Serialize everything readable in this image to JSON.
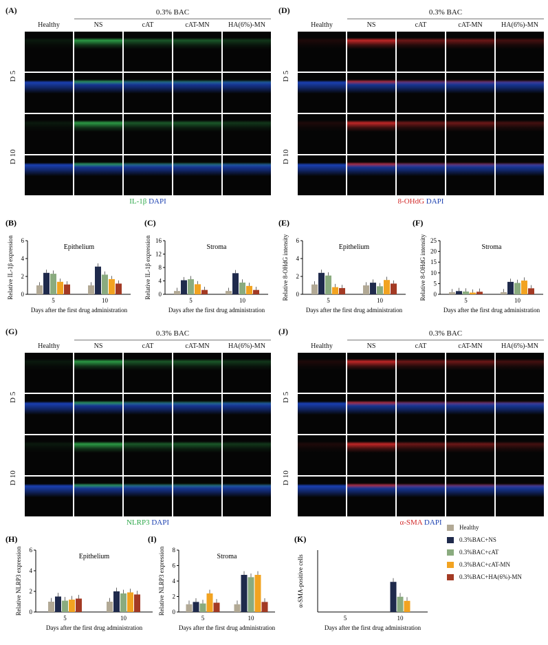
{
  "groups": {
    "bac": "0.3% BAC"
  },
  "columns": [
    "Healthy",
    "NS",
    "cAT",
    "cAT-MN",
    "HA(6%)-MN"
  ],
  "rows": [
    "D 5",
    "D 10"
  ],
  "panels": {
    "A": {
      "label": "(A)",
      "marker": "IL-1β",
      "dapi": "DAPI"
    },
    "D": {
      "label": "(D)",
      "marker": "8-OHdG",
      "dapi": "DAPI"
    },
    "G": {
      "label": "(G)",
      "marker": "NLRP3",
      "dapi": "DAPI"
    },
    "J": {
      "label": "(J)",
      "marker": "α-SMA",
      "dapi": "DAPI"
    }
  },
  "colors": {
    "green": "#2fa84b",
    "red": "#d22a2a",
    "blue": "#1a3fb0"
  },
  "legend": [
    {
      "name": "Healthy",
      "color": "#b2a995"
    },
    {
      "name": "0.3%BAC+NS",
      "color": "#1f2a4c"
    },
    {
      "name": "0.3%BAC+cAT",
      "color": "#8aab7f"
    },
    {
      "name": "0.3%BAC+cAT-MN",
      "color": "#f2a321"
    },
    {
      "name": "0.3%BAC+HA(6%)-MN",
      "color": "#a33a24"
    }
  ],
  "chart_data": [
    {
      "id": "B",
      "label": "(B)",
      "type": "bar",
      "title": "Epithelium",
      "ylabel": "Relative IL-1β expression",
      "xlabel": "Days after the first drug administration",
      "categories": [
        "5",
        "10"
      ],
      "ylim": [
        0,
        6
      ],
      "yticks": [
        0,
        2,
        4,
        6
      ],
      "series": [
        {
          "name": "Healthy",
          "values": [
            1,
            1
          ]
        },
        {
          "name": "0.3%BAC+NS",
          "values": [
            2.4,
            3.1
          ]
        },
        {
          "name": "0.3%BAC+cAT",
          "values": [
            2.3,
            2.2
          ]
        },
        {
          "name": "0.3%BAC+cAT-MN",
          "values": [
            1.4,
            1.7
          ]
        },
        {
          "name": "0.3%BAC+HA(6%)-MN",
          "values": [
            1.1,
            1.2
          ]
        }
      ]
    },
    {
      "id": "C",
      "label": "(C)",
      "type": "bar",
      "title": "Stroma",
      "ylabel": "Relative IL-1β expression",
      "xlabel": "Days after the first drug administration",
      "categories": [
        "5",
        "10"
      ],
      "ylim": [
        0,
        16
      ],
      "yticks": [
        0,
        4,
        8,
        12,
        16
      ],
      "series": [
        {
          "name": "Healthy",
          "values": [
            1,
            1
          ]
        },
        {
          "name": "0.3%BAC+NS",
          "values": [
            4.2,
            6.3
          ]
        },
        {
          "name": "0.3%BAC+cAT",
          "values": [
            4.5,
            3.5
          ]
        },
        {
          "name": "0.3%BAC+cAT-MN",
          "values": [
            3.0,
            2.5
          ]
        },
        {
          "name": "0.3%BAC+HA(6%)-MN",
          "values": [
            1.3,
            1.3
          ]
        }
      ]
    },
    {
      "id": "E",
      "label": "(E)",
      "type": "bar",
      "title": "Epithelium",
      "ylabel": "Relative 8-OHdG intensity",
      "xlabel": "Days after the first drug administration",
      "categories": [
        "5",
        "10"
      ],
      "ylim": [
        0,
        6
      ],
      "yticks": [
        0,
        2,
        4,
        6
      ],
      "series": [
        {
          "name": "Healthy",
          "values": [
            1.1,
            1.0
          ]
        },
        {
          "name": "0.3%BAC+NS",
          "values": [
            2.4,
            1.3
          ]
        },
        {
          "name": "0.3%BAC+cAT",
          "values": [
            2.1,
            0.9
          ]
        },
        {
          "name": "0.3%BAC+cAT-MN",
          "values": [
            0.8,
            1.6
          ]
        },
        {
          "name": "0.3%BAC+HA(6%)-MN",
          "values": [
            0.7,
            1.2
          ]
        }
      ]
    },
    {
      "id": "F",
      "label": "(F)",
      "type": "bar",
      "title": "Stroma",
      "ylabel": "Relative 8-OHdG intensity",
      "xlabel": "Days after the first drug administration",
      "categories": [
        "5",
        "10"
      ],
      "ylim": [
        0,
        25
      ],
      "yticks": [
        0,
        5,
        10,
        15,
        20,
        25
      ],
      "series": [
        {
          "name": "Healthy",
          "values": [
            1,
            1
          ]
        },
        {
          "name": "0.3%BAC+NS",
          "values": [
            1.5,
            5.8
          ]
        },
        {
          "name": "0.3%BAC+cAT",
          "values": [
            1.3,
            5.3
          ]
        },
        {
          "name": "0.3%BAC+cAT-MN",
          "values": [
            0.8,
            6.4
          ]
        },
        {
          "name": "0.3%BAC+HA(6%)-MN",
          "values": [
            1.2,
            2.8
          ]
        }
      ]
    },
    {
      "id": "H",
      "label": "(H)",
      "type": "bar",
      "title": "Epithelium",
      "ylabel": "Relative NLRP3 expression",
      "xlabel": "Days after the first drug administration",
      "categories": [
        "5",
        "10"
      ],
      "ylim": [
        0,
        6
      ],
      "yticks": [
        0,
        2,
        4,
        6
      ],
      "series": [
        {
          "name": "Healthy",
          "values": [
            1,
            1
          ]
        },
        {
          "name": "0.3%BAC+NS",
          "values": [
            1.5,
            2.0
          ]
        },
        {
          "name": "0.3%BAC+cAT",
          "values": [
            1.1,
            1.8
          ]
        },
        {
          "name": "0.3%BAC+cAT-MN",
          "values": [
            1.2,
            1.9
          ]
        },
        {
          "name": "0.3%BAC+HA(6%)-MN",
          "values": [
            1.3,
            1.7
          ]
        }
      ]
    },
    {
      "id": "I",
      "label": "(I)",
      "type": "bar",
      "title": "Stroma",
      "ylabel": "Relative NLRP3 expression",
      "xlabel": "Days after the first drug administration",
      "categories": [
        "5",
        "10"
      ],
      "ylim": [
        0,
        8
      ],
      "yticks": [
        0,
        2,
        4,
        6,
        8
      ],
      "series": [
        {
          "name": "Healthy",
          "values": [
            1,
            1
          ]
        },
        {
          "name": "0.3%BAC+NS",
          "values": [
            1.3,
            4.8
          ]
        },
        {
          "name": "0.3%BAC+cAT",
          "values": [
            1.1,
            4.5
          ]
        },
        {
          "name": "0.3%BAC+cAT-MN",
          "values": [
            2.4,
            4.8
          ]
        },
        {
          "name": "0.3%BAC+HA(6%)-MN",
          "values": [
            1.2,
            1.3
          ]
        }
      ]
    },
    {
      "id": "K",
      "label": "(K)",
      "type": "bar",
      "title": "",
      "ylabel": "α-SMA-positive cells",
      "xlabel": "Days after the first drug administration",
      "categories": [
        "5",
        "10"
      ],
      "ylim": [
        0,
        150
      ],
      "yticks": [],
      "series": [
        {
          "name": "Healthy",
          "values": [
            0,
            0
          ]
        },
        {
          "name": "0.3%BAC+NS",
          "values": [
            0,
            73
          ]
        },
        {
          "name": "0.3%BAC+cAT",
          "values": [
            0,
            37
          ]
        },
        {
          "name": "0.3%BAC+cAT-MN",
          "values": [
            0,
            27
          ]
        },
        {
          "name": "0.3%BAC+HA(6%)-MN",
          "values": [
            0,
            0
          ]
        }
      ]
    }
  ]
}
